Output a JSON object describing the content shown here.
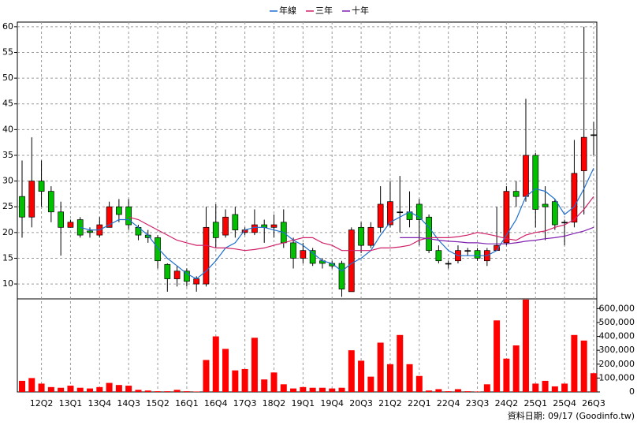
{
  "chart_data": {
    "type": "candlestick",
    "categories": [
      null,
      null,
      "12Q2",
      null,
      null,
      "13Q1",
      null,
      null,
      "13Q4",
      null,
      null,
      "14Q3",
      null,
      null,
      "15Q2",
      null,
      null,
      "16Q1",
      null,
      null,
      "16Q4",
      null,
      null,
      "17Q3",
      null,
      null,
      "18Q2",
      null,
      null,
      "19Q1",
      null,
      null,
      "19Q4",
      null,
      null,
      "20Q3",
      null,
      null,
      "21Q2",
      null,
      null,
      "22Q1",
      null,
      null,
      "22Q4",
      null,
      null,
      "23Q3",
      null,
      null,
      "24Q2",
      null,
      null,
      "25Q1",
      null,
      null,
      "25Q4",
      null,
      null,
      "26Q3"
    ],
    "open": [
      27,
      23,
      30,
      28,
      24,
      21,
      22.5,
      20.3,
      19.5,
      21,
      25,
      25,
      21,
      19.5,
      19,
      13.8,
      11,
      12.5,
      10,
      10,
      22,
      19.5,
      23.5,
      20,
      20,
      21.5,
      21,
      22,
      18,
      15,
      16.5,
      14.5,
      14,
      14,
      8.5,
      21,
      17.5,
      21,
      21.5,
      24,
      24,
      25.5,
      23,
      16.5,
      14,
      14.5,
      16.5,
      16.5,
      14.5,
      16.5,
      18,
      28,
      27,
      35,
      25.5,
      26,
      22,
      22,
      32,
      39
    ],
    "high": [
      34,
      38.5,
      34,
      29,
      26,
      22.5,
      23,
      21,
      23,
      26,
      26.5,
      26.5,
      21.5,
      20.5,
      19.5,
      14,
      13.5,
      13,
      11.5,
      25,
      25.5,
      24.5,
      25,
      21,
      24.5,
      22.5,
      23.5,
      24.5,
      19,
      18,
      17,
      15,
      14.5,
      14.5,
      21,
      22,
      22,
      29,
      30,
      31,
      28,
      26.5,
      23.5,
      17.5,
      14.5,
      17.5,
      17,
      17,
      17,
      25,
      29,
      30,
      46,
      35.5,
      29,
      26.5,
      22.5,
      38,
      60,
      41.5
    ],
    "low": [
      19,
      21,
      25,
      22,
      15.5,
      21,
      19,
      19,
      19,
      21,
      22,
      20.5,
      18.5,
      18,
      13,
      8.5,
      9.5,
      9.5,
      8.5,
      9.5,
      17,
      19,
      19,
      19.5,
      19.5,
      18,
      19,
      17,
      13,
      14,
      13.5,
      13,
      13,
      7.5,
      8.5,
      16,
      17,
      20,
      21,
      20,
      21,
      17.5,
      16,
      14,
      13,
      14,
      15.5,
      14.5,
      13.5,
      16.5,
      17.5,
      25,
      26,
      21,
      18.5,
      20.5,
      17.5,
      21,
      23.5,
      35
    ],
    "close": [
      23,
      30,
      28,
      24,
      21,
      22,
      19.5,
      20,
      21.5,
      25,
      23.5,
      21.5,
      19.5,
      19,
      14.5,
      11,
      12.5,
      10.5,
      11,
      21,
      19,
      23,
      20.5,
      20.5,
      21.5,
      21,
      21.5,
      18,
      15,
      16.5,
      14,
      14,
      13.5,
      9,
      20.5,
      17.5,
      21,
      25.5,
      26,
      24,
      22.5,
      22.5,
      16.5,
      14.5,
      14,
      16.5,
      16.5,
      15,
      16.5,
      17.5,
      28,
      27,
      35,
      24.5,
      25,
      21.5,
      22,
      31.5,
      38.5,
      39
    ],
    "up_color": "#ff0000",
    "down_color": "#00c000",
    "ylim": [
      7.1,
      60.9
    ],
    "yticks": [
      10,
      15,
      20,
      25,
      30,
      35,
      40,
      45,
      50,
      55,
      60
    ],
    "grid": true,
    "series": [
      {
        "name": "年線",
        "color": "#1e6fd0",
        "values": [
          null,
          null,
          null,
          null,
          null,
          null,
          21,
          20.5,
          20.5,
          21.5,
          22.5,
          22.5,
          21,
          19.5,
          17,
          15,
          13.5,
          12,
          11,
          12.5,
          14.5,
          17,
          18,
          20.5,
          21,
          21,
          20.5,
          20,
          18.5,
          17.5,
          16,
          14.5,
          14,
          12.5,
          14,
          15,
          16.5,
          19.5,
          22,
          23,
          24,
          23,
          21,
          18.5,
          16.5,
          15.5,
          15.5,
          15.5,
          15.5,
          16.5,
          19.5,
          22.5,
          27,
          28.5,
          28,
          26.5,
          23.5,
          25,
          28.5,
          32.5
        ]
      },
      {
        "name": "三年",
        "color": "#d0206a",
        "values": [
          null,
          null,
          null,
          null,
          null,
          null,
          null,
          null,
          null,
          null,
          null,
          23,
          22.5,
          21.5,
          20.5,
          19.5,
          18.5,
          18,
          17.5,
          17.5,
          17,
          17,
          16.8,
          16.5,
          16.7,
          17,
          17.5,
          18,
          18.5,
          19,
          19,
          18,
          17.5,
          16.5,
          16.5,
          16.5,
          16.5,
          17,
          17,
          17.2,
          17.5,
          18.5,
          19,
          19,
          19,
          19.2,
          19.5,
          20,
          19.7,
          19.3,
          18.8,
          18.5,
          19.5,
          20,
          20.3,
          21,
          21.5,
          22.5,
          24.5,
          27
        ]
      },
      {
        "name": "十年",
        "color": "#8020b0",
        "values": [
          null,
          null,
          null,
          null,
          null,
          null,
          null,
          null,
          null,
          null,
          null,
          null,
          null,
          null,
          null,
          null,
          null,
          null,
          null,
          null,
          null,
          null,
          null,
          null,
          null,
          null,
          null,
          null,
          null,
          null,
          null,
          null,
          null,
          null,
          null,
          null,
          null,
          null,
          null,
          19,
          19,
          19,
          18.8,
          18.5,
          18.3,
          18.2,
          18,
          18,
          17.8,
          17.8,
          17.8,
          18,
          18.3,
          18.5,
          18.8,
          19,
          19.3,
          19.8,
          20.3,
          21
        ]
      }
    ],
    "volume": {
      "color": "#ff0000",
      "values": [
        80000,
        100000,
        60000,
        35000,
        30000,
        45000,
        30000,
        25000,
        35000,
        65000,
        50000,
        45000,
        15000,
        10000,
        5000,
        5000,
        15000,
        5000,
        3000,
        230000,
        400000,
        310000,
        155000,
        165000,
        390000,
        90000,
        140000,
        55000,
        25000,
        35000,
        30000,
        30000,
        25000,
        30000,
        300000,
        225000,
        110000,
        355000,
        200000,
        410000,
        200000,
        115000,
        10000,
        20000,
        5000,
        20000,
        5000,
        3000,
        55000,
        515000,
        240000,
        335000,
        665000,
        60000,
        80000,
        40000,
        60000,
        410000,
        370000,
        135000
      ],
      "ylim": [
        0,
        670000
      ],
      "yticks": [
        0,
        {
          "value": 100000,
          "label": "100,000"
        },
        {
          "value": 200000,
          "label": "200,000"
        },
        {
          "value": 300000,
          "label": "300,000"
        },
        {
          "value": 400000,
          "label": "400,000"
        },
        {
          "value": 500000,
          "label": "500,000"
        },
        {
          "value": 600000,
          "label": "600,000"
        }
      ]
    },
    "footer": "資料日期: 09/17 (Goodinfo.tw)"
  }
}
